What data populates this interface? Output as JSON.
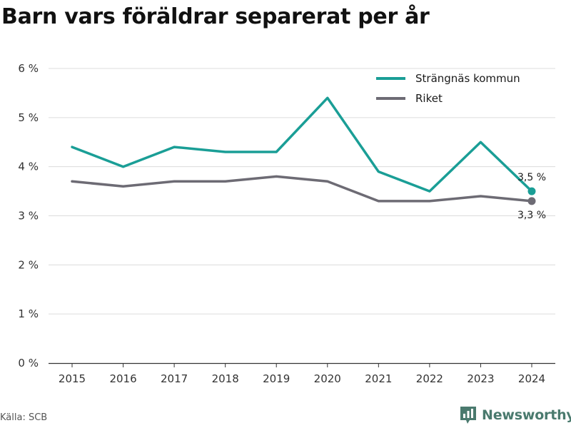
{
  "chart_data": {
    "type": "line",
    "title": "Barn vars föräldrar separerat per år",
    "xlabel": "",
    "ylabel": "",
    "x": [
      "2015",
      "2016",
      "2017",
      "2018",
      "2019",
      "2020",
      "2021",
      "2022",
      "2023",
      "2024"
    ],
    "ylim": [
      0,
      6
    ],
    "yticks": [
      "0 %",
      "1 %",
      "2 %",
      "3 %",
      "4 %",
      "5 %",
      "6 %"
    ],
    "grid": true,
    "legend_position": "top-right",
    "series": [
      {
        "name": "Strängnäs kommun",
        "color": "#1a9e96",
        "values": [
          4.4,
          4.0,
          4.4,
          4.3,
          4.3,
          5.4,
          3.9,
          3.5,
          4.5,
          3.5
        ],
        "end_label": "3,5 %"
      },
      {
        "name": "Riket",
        "color": "#6d6b74",
        "values": [
          3.7,
          3.6,
          3.7,
          3.7,
          3.8,
          3.7,
          3.3,
          3.3,
          3.4,
          3.3
        ],
        "end_label": "3,3 %"
      }
    ]
  },
  "footer": {
    "source": "Källa: SCB",
    "brand": "Newsworthy",
    "brand_icon": "bar-chart-icon"
  }
}
